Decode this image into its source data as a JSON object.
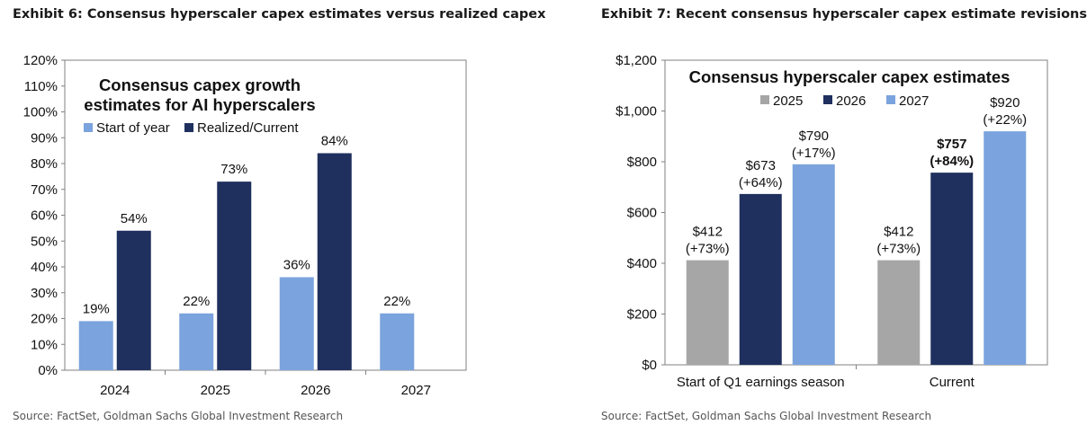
{
  "exhibits": [
    {
      "title": "Exhibit 6: Consensus hyperscaler capex estimates versus realized capex",
      "source": "Source: FactSet, Goldman Sachs Global Investment Research"
    },
    {
      "title": "Exhibit 7: Recent consensus hyperscaler capex estimate revisions",
      "source": "Source: FactSet, Goldman Sachs Global Investment Research"
    }
  ],
  "chart_data": [
    {
      "type": "bar",
      "title_lines": [
        "Consensus capex growth",
        "estimates for AI hyperscalers"
      ],
      "categories": [
        "2024",
        "2025",
        "2026",
        "2027"
      ],
      "series": [
        {
          "name": "Start of year",
          "values": [
            19,
            22,
            36,
            22
          ],
          "labels": [
            "19%",
            "22%",
            "36%",
            "22%"
          ],
          "color": "#7ba3dd"
        },
        {
          "name": "Realized/Current",
          "values": [
            54,
            73,
            84,
            null
          ],
          "labels": [
            "54%",
            "73%",
            "84%",
            ""
          ],
          "color": "#1f2f5e"
        }
      ],
      "ylim": [
        0,
        120
      ],
      "yticks": [
        0,
        10,
        20,
        30,
        40,
        50,
        60,
        70,
        80,
        90,
        100,
        110,
        120
      ],
      "ytick_labels": [
        "0%",
        "10%",
        "20%",
        "30%",
        "40%",
        "50%",
        "60%",
        "70%",
        "80%",
        "90%",
        "100%",
        "110%",
        "120%"
      ],
      "grid": false,
      "legend_position": "top-left"
    },
    {
      "type": "bar",
      "title": "Consensus hyperscaler capex estimates",
      "categories": [
        "Start of Q1 earnings season",
        "Current"
      ],
      "series": [
        {
          "name": "2025",
          "values": [
            412,
            412
          ],
          "labels": [
            [
              "$412",
              "(+73%)"
            ],
            [
              "$412",
              "(+73%)"
            ]
          ],
          "bold": [
            false,
            false
          ],
          "color": "#a6a6a6"
        },
        {
          "name": "2026",
          "values": [
            673,
            757
          ],
          "labels": [
            [
              "$673",
              "(+64%)"
            ],
            [
              "$757",
              "(+84%)"
            ]
          ],
          "bold": [
            false,
            true
          ],
          "color": "#1f2f5e"
        },
        {
          "name": "2027",
          "values": [
            790,
            920
          ],
          "labels": [
            [
              "$790",
              "(+17%)"
            ],
            [
              "$920",
              "(+22%)"
            ]
          ],
          "bold": [
            false,
            false
          ],
          "color": "#7ba3dd"
        }
      ],
      "ylim": [
        0,
        1200
      ],
      "yticks": [
        0,
        200,
        400,
        600,
        800,
        1000,
        1200
      ],
      "ytick_labels": [
        "$0",
        "$200",
        "$400",
        "$600",
        "$800",
        "$1,000",
        "$1,200"
      ],
      "grid": false,
      "legend_position": "top-center"
    }
  ]
}
